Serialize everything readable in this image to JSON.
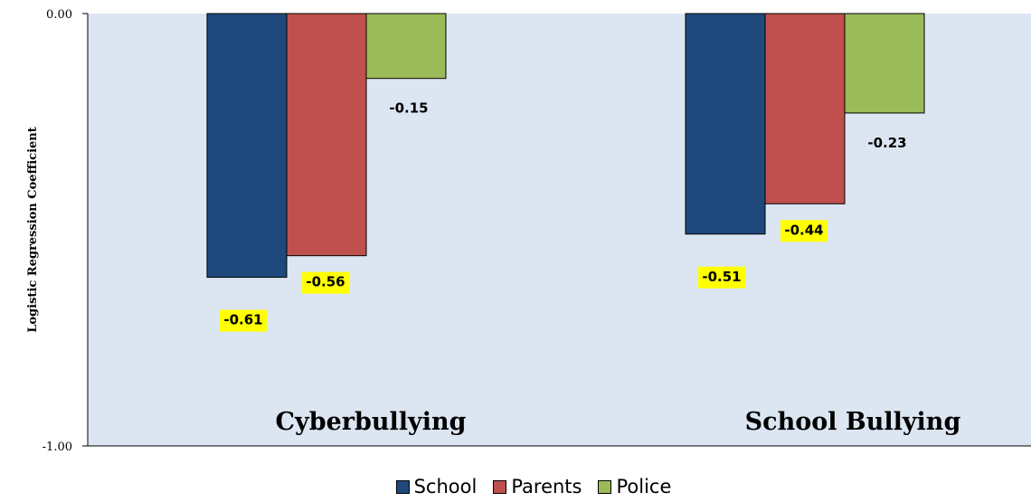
{
  "chart_data": {
    "type": "bar",
    "title": "",
    "xlabel": "",
    "ylabel": "Logistic Regression Coefficient",
    "ylim": [
      -1.0,
      0.0
    ],
    "yticks": [
      "0.00",
      "-1.00"
    ],
    "categories": [
      "Cyberbullying",
      "School Bullying"
    ],
    "series": [
      {
        "name": "School",
        "color": "#1f497d",
        "values": [
          -0.61,
          -0.51
        ],
        "labels": [
          "-0.61",
          "-0.51"
        ],
        "highlight": [
          true,
          true
        ]
      },
      {
        "name": "Parents",
        "color": "#c0504d",
        "values": [
          -0.56,
          -0.44
        ],
        "labels": [
          "-0.56",
          "-0.44"
        ],
        "highlight": [
          true,
          true
        ]
      },
      {
        "name": "Police",
        "color": "#9bbb59",
        "values": [
          -0.15,
          -0.23
        ],
        "labels": [
          "-0.15",
          "-0.23"
        ],
        "highlight": [
          false,
          false
        ]
      }
    ],
    "plot_background": "#dce6f2",
    "label_highlight_color": "#ffff00",
    "grid": false,
    "legend_position": "bottom"
  }
}
